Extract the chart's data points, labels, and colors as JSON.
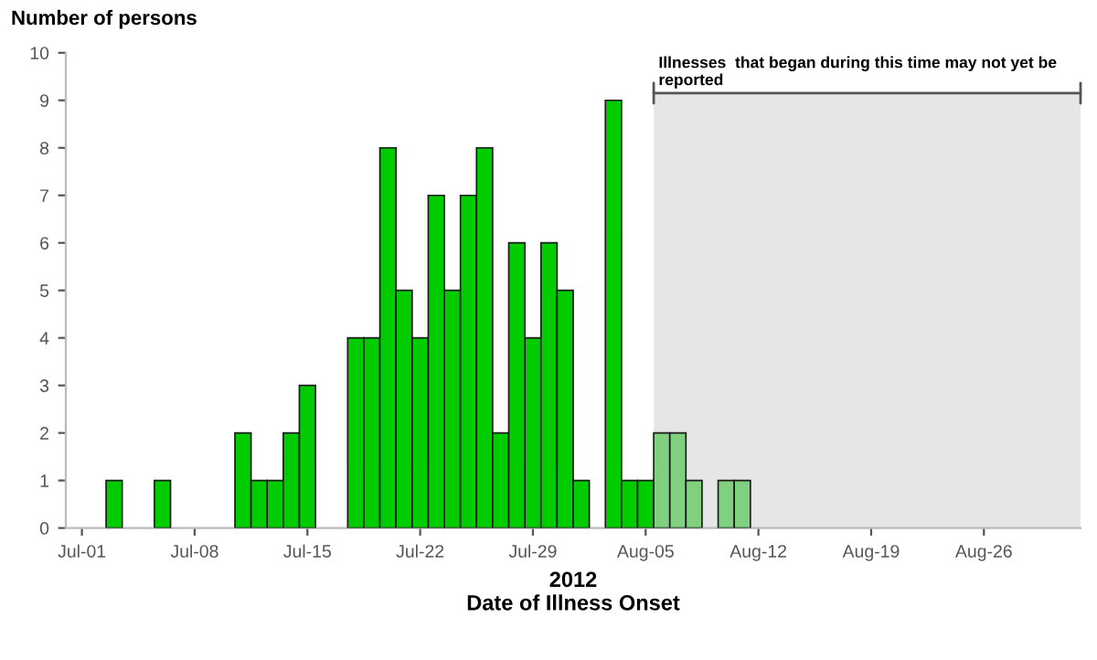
{
  "chart_data": {
    "type": "bar",
    "ylabel": "Number of persons",
    "xlabel": "2012\nDate of Illness Onset",
    "series": [
      {
        "color": "#00cc00",
        "x": [
          "2012-07-03",
          "2012-07-06",
          "2012-07-11",
          "2012-07-12",
          "2012-07-13",
          "2012-07-14",
          "2012-07-15",
          "2012-07-18",
          "2012-07-19",
          "2012-07-20",
          "2012-07-21",
          "2012-07-22",
          "2012-07-23",
          "2012-07-24",
          "2012-07-25",
          "2012-07-26",
          "2012-07-27",
          "2012-07-28",
          "2012-07-29",
          "2012-07-30",
          "2012-07-31",
          "2012-08-01",
          "2012-08-03",
          "2012-08-04",
          "2012-08-05"
        ],
        "values": [
          1,
          1,
          2,
          1,
          1,
          2,
          3,
          4,
          4,
          8,
          5,
          4,
          7,
          5,
          7,
          8,
          2,
          6,
          4,
          6,
          5,
          1,
          9,
          1,
          1
        ]
      },
      {
        "color": "#80d080",
        "x": [
          "2012-08-06",
          "2012-08-07",
          "2012-08-08",
          "2012-08-10",
          "2012-08-11"
        ],
        "values": [
          2,
          2,
          1,
          1,
          1
        ]
      }
    ],
    "bands": [
      {
        "axis": "x",
        "from": "2012-08-05T12:00",
        "to": "2012-09-01",
        "color": "#e6e6e6",
        "label": "Illnesses  that began during this time may not yet be\nreported"
      }
    ],
    "xlim": [
      "2012-06-30",
      "2012-09-01"
    ],
    "xticks": [
      {
        "value": "2012-07-01",
        "label": "Jul-01"
      },
      {
        "value": "2012-07-08",
        "label": "Jul-08"
      },
      {
        "value": "2012-07-15",
        "label": "Jul-15"
      },
      {
        "value": "2012-07-22",
        "label": "Jul-22"
      },
      {
        "value": "2012-07-29",
        "label": "Jul-29"
      },
      {
        "value": "2012-08-05",
        "label": "Aug-05"
      },
      {
        "value": "2012-08-12",
        "label": "Aug-12"
      },
      {
        "value": "2012-08-19",
        "label": "Aug-19"
      },
      {
        "value": "2012-08-26",
        "label": "Aug-26"
      }
    ],
    "ylim": [
      0,
      10
    ],
    "yticks": [
      0,
      1,
      2,
      3,
      4,
      5,
      6,
      7,
      8,
      9,
      10
    ],
    "grid": false,
    "legend": false
  }
}
